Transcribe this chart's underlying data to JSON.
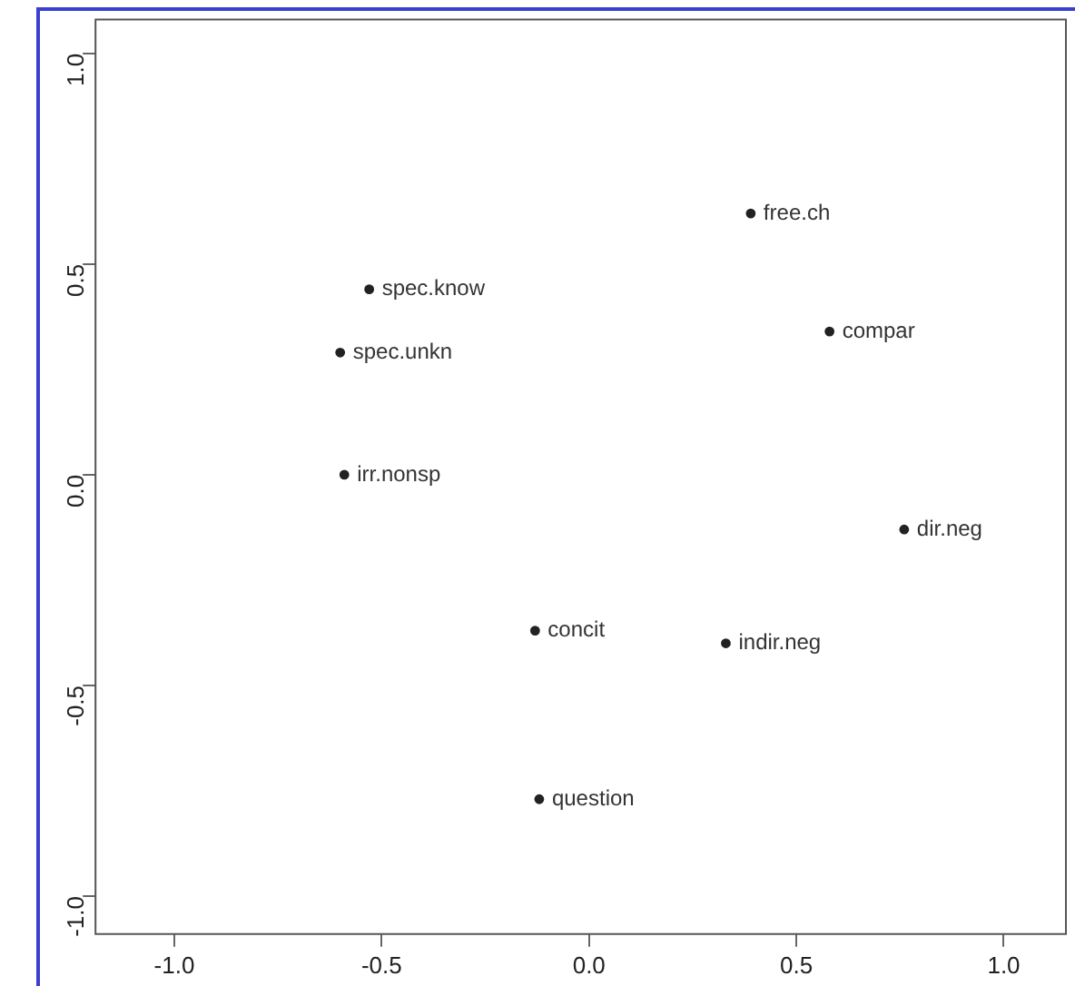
{
  "chart_data": {
    "type": "scatter",
    "xlim": [
      -1.19,
      1.15
    ],
    "ylim": [
      -1.09,
      1.08
    ],
    "xticks": [
      {
        "value": -1,
        "label": "-1.0"
      },
      {
        "value": -0.5,
        "label": "-0.5"
      },
      {
        "value": 0,
        "label": "0.0"
      },
      {
        "value": 0.5,
        "label": "0.5"
      },
      {
        "value": 1,
        "label": "1.0"
      }
    ],
    "yticks": [
      {
        "value": -1,
        "label": "-1.0"
      },
      {
        "value": -0.5,
        "label": "-0.5"
      },
      {
        "value": 0,
        "label": "0.0"
      },
      {
        "value": 0.5,
        "label": "0.5"
      },
      {
        "value": 1,
        "label": "1.0"
      }
    ],
    "grid": false,
    "legend": false,
    "marker": "circle",
    "series": [
      {
        "color": "#222222",
        "x": [
          0.39,
          0.58,
          0.76,
          0.33,
          -0.13,
          -0.12,
          -0.53,
          -0.6,
          -0.59
        ],
        "values": [
          0.62,
          0.34,
          -0.13,
          -0.4,
          -0.37,
          -0.77,
          0.44,
          0.29,
          0
        ]
      }
    ],
    "annotations": [
      {
        "text": "free.ch",
        "x": 0.39,
        "y": 0.62
      },
      {
        "text": "compar",
        "x": 0.58,
        "y": 0.34
      },
      {
        "text": "dir.neg",
        "x": 0.76,
        "y": -0.13
      },
      {
        "text": "indir.neg",
        "x": 0.33,
        "y": -0.4
      },
      {
        "text": "concit",
        "x": -0.13,
        "y": -0.37
      },
      {
        "text": "question",
        "x": -0.12,
        "y": -0.77
      },
      {
        "text": "spec.know",
        "x": -0.53,
        "y": 0.44
      },
      {
        "text": "spec.unkn",
        "x": -0.6,
        "y": 0.29
      },
      {
        "text": "irr.nonsp",
        "x": -0.59,
        "y": 0
      }
    ]
  }
}
